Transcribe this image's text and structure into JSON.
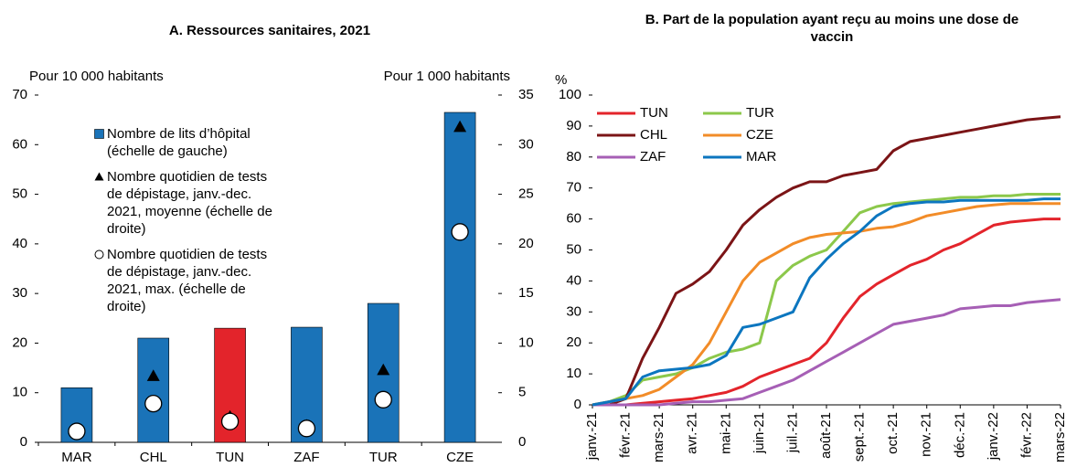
{
  "chart_data": [
    {
      "type": "bar",
      "title": "A. Ressources sanitaires, 2021",
      "ylabel": "Pour 10 000 habitants",
      "y2label": "Pour 1 000 habitants",
      "categories": [
        "MAR",
        "CHL",
        "TUN",
        "ZAF",
        "TUR",
        "CZE"
      ],
      "series": [
        {
          "name": "Nombre de lits d’hôpital (échelle de gauche)",
          "color": "#1a73b8",
          "colors": [
            "#1a73b8",
            "#1a73b8",
            "#e3242b",
            "#1a73b8",
            "#1a73b8",
            "#1a73b8"
          ],
          "values": [
            11,
            21,
            23,
            23.2,
            28,
            66.5
          ]
        },
        {
          "name": "Nombre quotidien de tests de dépistage, janv.-dec. 2021, moyenne (échelle de droite)",
          "color": "#000000",
          "marker": "triangle",
          "axis": "y2",
          "values": [
            1.3,
            6.7,
            2.6,
            1.7,
            7.3,
            31.8
          ]
        },
        {
          "name": "Nombre quotidien de tests de dépistage, janv.-dec. 2021, max. (échelle de droite)",
          "color": "#000000",
          "marker": "circle",
          "axis": "y2",
          "values": [
            1.1,
            3.9,
            2.1,
            1.4,
            4.3,
            21.2
          ]
        }
      ],
      "ylim": [
        0,
        70
      ],
      "yticks": [
        0,
        10,
        20,
        30,
        40,
        50,
        60,
        70
      ],
      "y2lim": [
        0,
        35
      ],
      "y2ticks": [
        0,
        5,
        10,
        15,
        20,
        25,
        30,
        35
      ],
      "grid": false,
      "legend": "upper left"
    },
    {
      "type": "line",
      "title": "B. Part de la population ayant reçu au moins une dose de vaccin",
      "ylabel": "%",
      "categories": [
        "janv.-21",
        null,
        "févr.-21",
        null,
        "mars-21",
        null,
        "avr.-21",
        null,
        "mai-21",
        null,
        "juin-21",
        null,
        "juil.-21",
        null,
        "août-21",
        null,
        "sept.-21",
        null,
        "oct.-21",
        null,
        "nov.-21",
        null,
        "déc.-21",
        null,
        "janv.-22",
        null,
        "févr.-22",
        null,
        "mars-22"
      ],
      "series": [
        {
          "name": "TUN",
          "color": "#e3242b",
          "values": [
            0,
            0,
            0,
            0.5,
            1,
            1.5,
            2,
            3,
            4,
            6,
            9,
            11,
            13,
            15,
            20,
            28,
            35,
            39,
            42,
            45,
            47,
            50,
            52,
            55,
            58,
            59,
            59.5,
            60,
            60
          ]
        },
        {
          "name": "TUR",
          "color": "#8cc84b",
          "values": [
            0,
            1,
            3,
            8,
            9,
            10,
            12,
            15,
            17,
            18,
            20,
            40,
            45,
            48,
            50,
            56,
            62,
            64,
            65,
            65.5,
            66,
            66.5,
            67,
            67,
            67.5,
            67.5,
            68,
            68,
            68
          ]
        },
        {
          "name": "CHL",
          "color": "#7b1416",
          "values": [
            0,
            0,
            2,
            15,
            25,
            36,
            39,
            43,
            50,
            58,
            63,
            67,
            70,
            72,
            72,
            74,
            75,
            76,
            82,
            85,
            86,
            87,
            88,
            89,
            90,
            91,
            92,
            92.5,
            93
          ]
        },
        {
          "name": "CZE",
          "color": "#f28c28",
          "values": [
            0,
            1,
            2,
            3,
            5,
            9,
            13,
            20,
            30,
            40,
            46,
            49,
            52,
            54,
            55,
            55.5,
            56,
            57,
            57.5,
            59,
            61,
            62,
            63,
            64,
            64.5,
            65,
            65,
            65,
            65
          ]
        },
        {
          "name": "ZAF",
          "color": "#a65fb5",
          "values": [
            0,
            0,
            0,
            0,
            0,
            0.5,
            1,
            1,
            1.5,
            2,
            4,
            6,
            8,
            11,
            14,
            17,
            20,
            23,
            26,
            27,
            28,
            29,
            31,
            31.5,
            32,
            32,
            33,
            33.5,
            34
          ]
        },
        {
          "name": "MAR",
          "color": "#0c76bf",
          "values": [
            0,
            1,
            2,
            9,
            11,
            11.5,
            12,
            13,
            16,
            25,
            26,
            28,
            30,
            41,
            47,
            52,
            56,
            61,
            64,
            65,
            65.5,
            65.5,
            66,
            66,
            66,
            66,
            66,
            66.5,
            66.5
          ]
        }
      ],
      "ylim": [
        0,
        100
      ],
      "yticks": [
        0,
        10,
        20,
        30,
        40,
        50,
        60,
        70,
        80,
        90,
        100
      ],
      "grid": false,
      "legend": "upper left"
    }
  ]
}
